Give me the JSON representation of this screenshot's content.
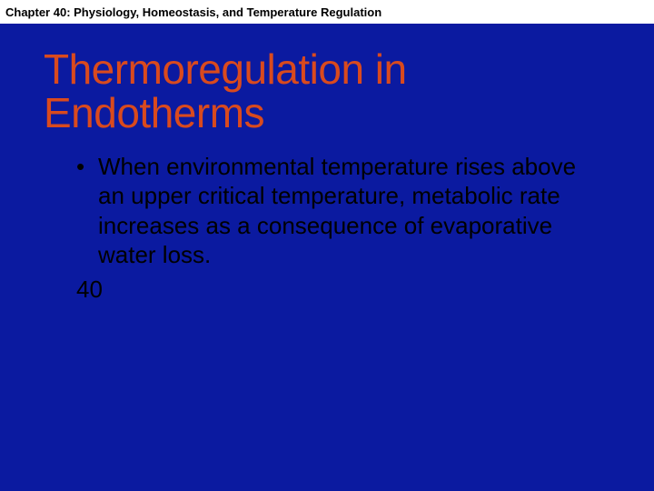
{
  "slide": {
    "background_color": "#0b1aa0",
    "header": {
      "background_color": "#ffffff",
      "chapter_label": "Chapter 40: Physiology, Homeostasis, and Temperature Regulation",
      "chapter_label_color": "#000000",
      "chapter_label_fontsize": 13
    },
    "title": {
      "text": "Thermoregulation in Endotherms",
      "color": "#d94a1e",
      "fontsize": 46
    },
    "bullets": [
      {
        "text": "When environmental temperature rises above an upper critical temperature, metabolic rate increases as a consequence of evaporative water loss.",
        "color": "#000000",
        "fontsize": 26
      }
    ],
    "page_number": {
      "text": "40",
      "color": "#000000",
      "fontsize": 26
    }
  }
}
